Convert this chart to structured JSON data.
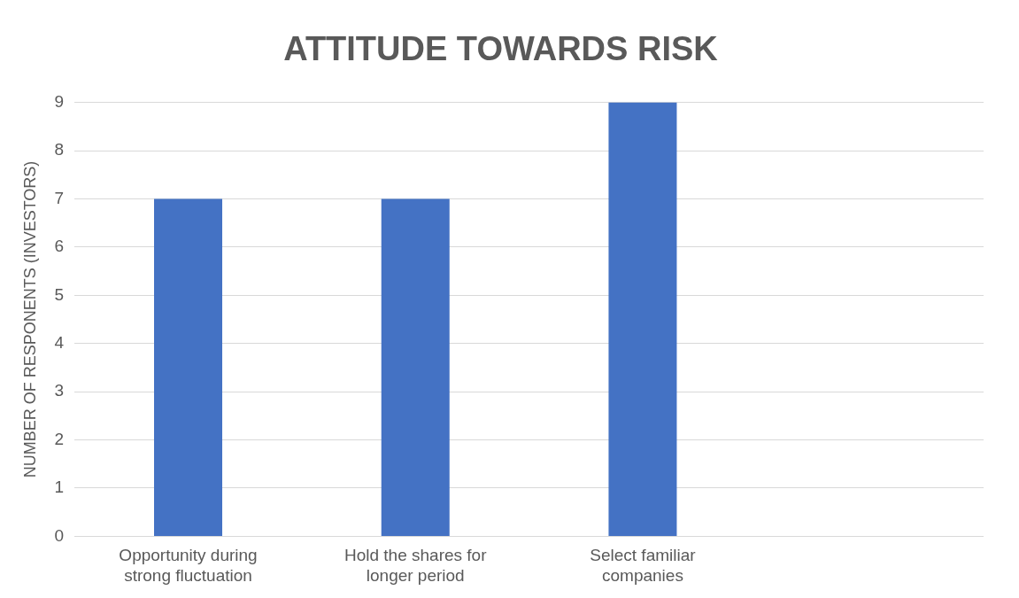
{
  "chart_data": {
    "type": "bar",
    "title": "ATTITUDE TOWARDS RISK",
    "ylabel": "NUMBER OF RESPONENTS (INVESTORS)",
    "categories": [
      "Opportunity during strong fluctuation",
      "Hold the shares for longer period",
      "Select familiar companies",
      null
    ],
    "values": [
      7,
      7,
      9,
      null
    ],
    "color": "#4472c4",
    "ylim": [
      0,
      9
    ],
    "yticks": [
      0,
      1,
      2,
      3,
      4,
      5,
      6,
      7,
      8,
      9
    ],
    "grid": "y",
    "legend": false
  }
}
